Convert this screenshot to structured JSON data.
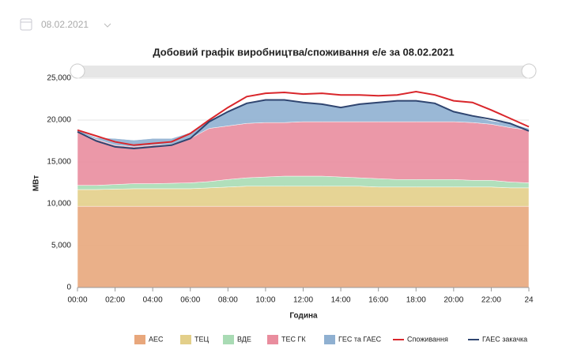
{
  "date_picker": {
    "value": "08.02.2021"
  },
  "chart_data": {
    "type": "area",
    "stacked": true,
    "title": "Добовий графік виробництва/споживання е/е за 08.02.2021",
    "x_label": "Година",
    "y_label": "МВт",
    "x": [
      0,
      1,
      2,
      3,
      4,
      5,
      6,
      7,
      8,
      9,
      10,
      11,
      12,
      13,
      14,
      15,
      16,
      17,
      18,
      19,
      20,
      21,
      22,
      23,
      24
    ],
    "xlim": [
      0,
      24
    ],
    "xticks": [
      {
        "value": 0,
        "label": "00:00"
      },
      {
        "value": 2,
        "label": "02:00"
      },
      {
        "value": 4,
        "label": "04:00"
      },
      {
        "value": 6,
        "label": "06:00"
      },
      {
        "value": 8,
        "label": "08:00"
      },
      {
        "value": 10,
        "label": "10:00"
      },
      {
        "value": 12,
        "label": "12:00"
      },
      {
        "value": 14,
        "label": "14:00"
      },
      {
        "value": 16,
        "label": "16:00"
      },
      {
        "value": 18,
        "label": "18:00"
      },
      {
        "value": 20,
        "label": "20:00"
      },
      {
        "value": 22,
        "label": "22:00"
      },
      24
    ],
    "ylim": [
      0,
      25000
    ],
    "yticks": [
      0,
      {
        "value": 5000,
        "label": "5,000"
      },
      {
        "value": 10000,
        "label": "10,000"
      },
      {
        "value": 15000,
        "label": "15,000"
      },
      {
        "value": 20000,
        "label": "20,000"
      },
      {
        "value": 25000,
        "label": "25,000"
      }
    ],
    "grid": true,
    "series": [
      {
        "name": "АЕС",
        "color": "#e8a77c",
        "values": [
          9700,
          9700,
          9700,
          9700,
          9700,
          9700,
          9700,
          9700,
          9700,
          9700,
          9700,
          9700,
          9700,
          9700,
          9700,
          9700,
          9700,
          9700,
          9700,
          9700,
          9700,
          9700,
          9700,
          9700,
          9700
        ]
      },
      {
        "name": "ТЕЦ",
        "color": "#e3cf8a",
        "values": [
          2000,
          2000,
          2050,
          2100,
          2100,
          2100,
          2100,
          2200,
          2300,
          2400,
          2400,
          2400,
          2400,
          2400,
          2400,
          2400,
          2300,
          2300,
          2300,
          2300,
          2300,
          2300,
          2300,
          2200,
          2200
        ]
      },
      {
        "name": "ВДЕ",
        "color": "#a9dbb4",
        "values": [
          500,
          500,
          550,
          600,
          600,
          650,
          700,
          750,
          900,
          1000,
          1100,
          1200,
          1200,
          1200,
          1100,
          1000,
          1000,
          900,
          900,
          900,
          900,
          800,
          800,
          700,
          600
        ]
      },
      {
        "name": "ТЕС ГК",
        "color": "#e98d9e",
        "values": [
          6400,
          5500,
          4700,
          4400,
          4600,
          4650,
          5300,
          6350,
          6400,
          6500,
          6500,
          6400,
          6500,
          6500,
          6600,
          6700,
          6800,
          6900,
          6900,
          6900,
          6900,
          6900,
          6700,
          6500,
          6300
        ]
      },
      {
        "name": "ГЕС та ГАЕС",
        "color": "#8fb0d1",
        "values": [
          200,
          200,
          800,
          800,
          800,
          700,
          700,
          900,
          1700,
          2400,
          2700,
          2700,
          2300,
          2100,
          1700,
          2100,
          2300,
          2500,
          2500,
          2200,
          1300,
          800,
          400,
          500,
          200
        ]
      },
      {
        "name": "Споживання",
        "color": "#d9262b",
        "type": "line",
        "values": [
          18800,
          18100,
          17400,
          17000,
          17200,
          17400,
          18400,
          20000,
          21500,
          22800,
          23200,
          23300,
          23100,
          23200,
          23000,
          23000,
          22900,
          23000,
          23400,
          23000,
          22300,
          22100,
          21200,
          20200,
          19200
        ]
      },
      {
        "name": "ГАЕС закачка",
        "color": "#2f4570",
        "type": "line",
        "values": [
          18600,
          17500,
          16800,
          16600,
          16800,
          17000,
          17800,
          19800,
          21000,
          22000,
          22400,
          22400,
          22100,
          21900,
          21500,
          21900,
          22100,
          22300,
          22300,
          22000,
          21000,
          20500,
          20100,
          19600,
          18700
        ]
      }
    ]
  }
}
